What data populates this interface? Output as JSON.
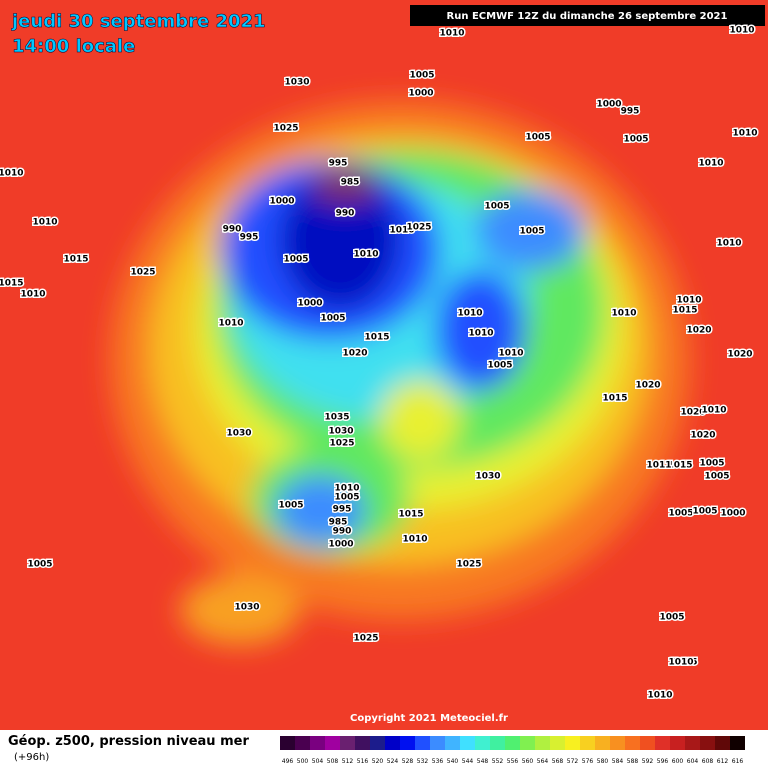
{
  "header": {
    "title_date": "jeudi 30 septembre 2021",
    "title_time": "14:00 locale",
    "run": "Run ECMWF 12Z du dimanche 26 septembre 2021"
  },
  "isobar_labels": [
    "1010",
    "1005",
    "1000",
    "1030",
    "1025",
    "1000",
    "995",
    "1005",
    "1005",
    "1010",
    "1010",
    "1010",
    "1010",
    "1010",
    "1010",
    "1010",
    "1010",
    "1015",
    "1025",
    "1015",
    "1010",
    "995",
    "985",
    "1000",
    "990",
    "1010",
    "1025",
    "990",
    "995",
    "1005",
    "1010",
    "1005",
    "1005",
    "1000",
    "1005",
    "1010",
    "1010",
    "1010",
    "1015",
    "1020",
    "1010",
    "1005",
    "1015",
    "1020",
    "1020",
    "1020",
    "1015",
    "1035",
    "1030",
    "1025",
    "1030",
    "1020",
    "1010",
    "1020",
    "1015",
    "1011",
    "1005",
    "1005",
    "1030",
    "1010",
    "1005",
    "1005",
    "995",
    "985",
    "990",
    "1000",
    "1015",
    "1010",
    "1005",
    "1005",
    "1000",
    "1005",
    "1025",
    "1030",
    "1025",
    "1005",
    "1005",
    "1010",
    "1010"
  ],
  "copyright": "Copyright 2021 Meteociel.fr",
  "legend": {
    "title": "Géop. z500, pression niveau mer",
    "lead": "(+96h)",
    "scale": [
      496,
      500,
      504,
      508,
      512,
      516,
      520,
      524,
      528,
      532,
      536,
      540,
      544,
      548,
      552,
      556,
      560,
      564,
      568,
      572,
      576,
      580,
      584,
      588,
      592,
      596,
      600,
      604,
      608,
      612,
      616
    ],
    "colors": [
      "#2a0030",
      "#4a0050",
      "#7a0080",
      "#a000a0",
      "#6a2070",
      "#401060",
      "#1c1c8c",
      "#0000c8",
      "#0010f0",
      "#2050ff",
      "#3c8cff",
      "#40b4ff",
      "#40e0ff",
      "#40f0d0",
      "#40f0a0",
      "#50f070",
      "#80f050",
      "#b0f040",
      "#d8f030",
      "#f8f020",
      "#f8d020",
      "#f8b020",
      "#f89020",
      "#f87020",
      "#f05020",
      "#e03028",
      "#c82020",
      "#a81818",
      "#881010",
      "#600808",
      "#100000"
    ]
  }
}
